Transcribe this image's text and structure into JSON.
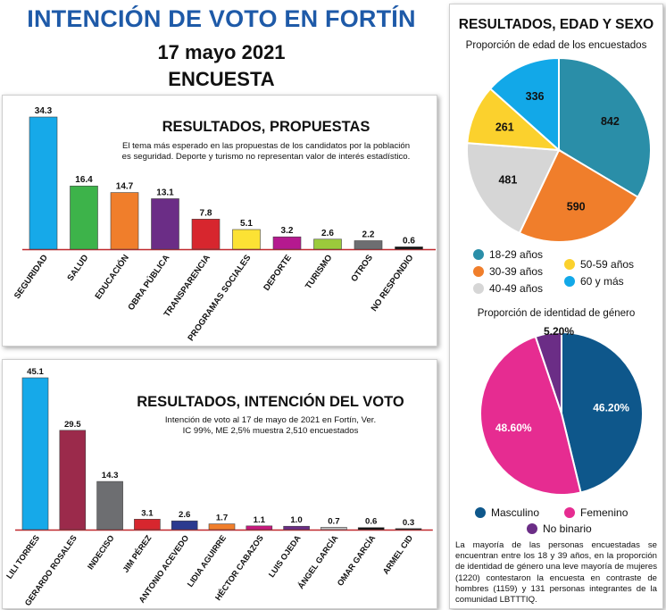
{
  "header": {
    "title": "INTENCIÓN DE VOTO EN FORTÍN",
    "date": "17 mayo 2021",
    "subtitle": "ENCUESTA"
  },
  "proposals": {
    "title": "RESULTADOS, PROPUESTAS",
    "note_line1": "El tema más esperado en las propuestas de los candidatos por la población",
    "note_line2": "es seguridad. Deporte y turismo no representan valor de interés estadístico."
  },
  "vote": {
    "title": "RESULTADOS, INTENCIÓN DEL VOTO",
    "note_line1": "Intención de voto al 17 de mayo de 2021 en Fortín, Ver.",
    "note_line2": "IC 99%, ME 2,5% muestra 2,510 encuestados"
  },
  "side": {
    "title": "RESULTADOS, EDAD Y SEXO",
    "age_subtitle": "Proporción de edad de los encuestados",
    "gender_subtitle": "Proporción de identidad de género",
    "paragraph": "La mayoría de las personas encuestadas se encuentran entre los 18 y 39 años, en la proporción de identidad de género una leve mayoría de mujeres (1220) contestaron la encuesta en contraste de hombres (1159) y 131 personas integrantes de la comunidad LBTTTIQ."
  },
  "colors": {
    "title_blue": "#1e5aa8",
    "axis_red": "#c0282d"
  },
  "chart_data": [
    {
      "type": "bar",
      "title": "RESULTADOS, PROPUESTAS",
      "categories": [
        "SEGURIDAD",
        "SALUD",
        "EDUCACIÓN",
        "OBRA PÚBLICA",
        "TRANSPARENCIA",
        "PROGRAMAS SOCIALES",
        "DEPORTE",
        "TURISMO",
        "OTROS",
        "NO RESPONDIO"
      ],
      "values": [
        34.3,
        16.4,
        14.7,
        13.1,
        7.8,
        5.1,
        3.2,
        2.6,
        2.2,
        0.6
      ],
      "value_labels": [
        "34.3",
        "16.4",
        "14.7",
        "13.1",
        "7.8",
        "5.1",
        "3.2",
        "2.6",
        "2.2",
        "0.6"
      ],
      "colors": [
        "#16a9e9",
        "#3db34a",
        "#f07e2b",
        "#6b2d86",
        "#d7262e",
        "#fce234",
        "#b5198f",
        "#9bcb3b",
        "#6d6e71",
        "#111111"
      ],
      "ylim": [
        0,
        34.3
      ],
      "grid": false
    },
    {
      "type": "bar",
      "title": "RESULTADOS, INTENCIÓN DEL VOTO",
      "categories": [
        "LILI TORRES",
        "GERARDO ROSALES",
        "INDECISO",
        "JIM PÉREZ",
        "ANTONIO ACEVEDO",
        "LIDIA AGUIRRE",
        "HÉCTOR CABAZOS",
        "LUIS OJEDA",
        "ÁNGEL GARCÍA",
        "OMAR GARCÍA",
        "ARMEL CID"
      ],
      "values": [
        45.1,
        29.5,
        14.3,
        3.1,
        2.6,
        1.7,
        1.1,
        1.0,
        0.7,
        0.6,
        0.3
      ],
      "value_labels": [
        "45.1",
        "29.5",
        "14.3",
        "3.1",
        "2.6",
        "1.7",
        "1.1",
        "1.0",
        "0.7",
        "0.6",
        "0.3"
      ],
      "colors": [
        "#16a9e9",
        "#9b2a4b",
        "#6d6e71",
        "#d7262e",
        "#2b3a8f",
        "#f07e2b",
        "#c9187e",
        "#6b2d86",
        "#bfbfbf",
        "#111111",
        "#111111"
      ],
      "ylim": [
        0,
        45.1
      ],
      "grid": false
    },
    {
      "type": "pie",
      "title": "Proporción de edad de los encuestados",
      "labels": [
        "18-29 años",
        "30-39 años",
        "40-49 años",
        "50-59 años",
        "60 y más"
      ],
      "values": [
        842,
        590,
        481,
        261,
        336
      ],
      "value_labels": [
        "842",
        "590",
        "481",
        "261",
        "336"
      ],
      "colors": [
        "#2a8ea8",
        "#f07e2b",
        "#d6d6d6",
        "#fbd12d",
        "#12a8e8"
      ],
      "legend": "bottom"
    },
    {
      "type": "pie",
      "title": "Proporción de identidad de género",
      "labels": [
        "Masculino",
        "Femenino",
        "No binario"
      ],
      "values": [
        46.2,
        48.6,
        5.2
      ],
      "value_labels": [
        "46.20%",
        "48.60%",
        "5.20%"
      ],
      "colors": [
        "#0e578b",
        "#e62c91",
        "#6b2d86"
      ],
      "legend": "bottom"
    }
  ]
}
